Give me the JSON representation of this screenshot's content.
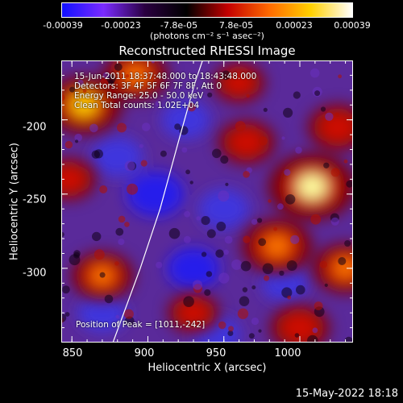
{
  "chart_data": {
    "type": "heatmap",
    "title": "Reconstructed RHESSI Image",
    "xlabel": "Heliocentric X (arcsec)",
    "ylabel": "Heliocentric Y (arcsec)",
    "xlim": [
      843,
      1035
    ],
    "ylim": [
      -350,
      -160
    ],
    "x_ticks": [
      "850",
      "900",
      "950",
      "1000"
    ],
    "x_tick_values": [
      850,
      900,
      950,
      1000
    ],
    "y_ticks": [
      "-200",
      "-250",
      "-300"
    ],
    "y_tick_values": [
      -200,
      -250,
      -300
    ],
    "colorbar": {
      "range": [
        -0.00039,
        0.00039
      ],
      "tick_labels": [
        "-0.00039",
        "-0.00023",
        "-7.8e-05",
        "7.8e-05",
        "0.00023",
        "0.00039"
      ],
      "unit": "(photons cm⁻² s⁻¹ asec⁻²)",
      "colors": [
        "#1010ff",
        "#7a2bff",
        "#2a0040",
        "#000000",
        "#c40000",
        "#ff6a00",
        "#ffd000",
        "#ffffff"
      ]
    },
    "info_lines": [
      "15-Jun-2011 18:37:48.000 to 18:43:48.000",
      "Detectors: 3F 4F 5F 6F 7F 8F, Att 0",
      "Energy Range: 25.0 - 50.0 keV",
      "Clean    Total counts: 1.02E+04"
    ],
    "peak_label": "Position of Peak = [1011,-242]",
    "hot_spots": [
      {
        "x": 858,
        "y": -190,
        "level": 0.8
      },
      {
        "x": 892,
        "y": -170,
        "level": 0.6
      },
      {
        "x": 1008,
        "y": -245,
        "level": 1.0
      },
      {
        "x": 985,
        "y": -285,
        "level": 0.7
      },
      {
        "x": 1025,
        "y": -205,
        "level": 0.5
      },
      {
        "x": 870,
        "y": -305,
        "level": 0.55
      },
      {
        "x": 965,
        "y": -215,
        "level": 0.45
      },
      {
        "x": 1000,
        "y": -340,
        "level": 0.5
      },
      {
        "x": 930,
        "y": -330,
        "level": 0.35
      },
      {
        "x": 960,
        "y": -175,
        "level": 0.35
      },
      {
        "x": 848,
        "y": -240,
        "level": 0.4
      },
      {
        "x": 1030,
        "y": -300,
        "level": 0.6
      }
    ],
    "limb_curve": [
      [
        877,
        -350
      ],
      [
        895,
        -300
      ],
      [
        908,
        -260
      ],
      [
        920,
        -215
      ],
      [
        931,
        -175
      ],
      [
        936,
        -160
      ]
    ]
  },
  "footer": {
    "date_stamp": "15-May-2022 18:18"
  }
}
